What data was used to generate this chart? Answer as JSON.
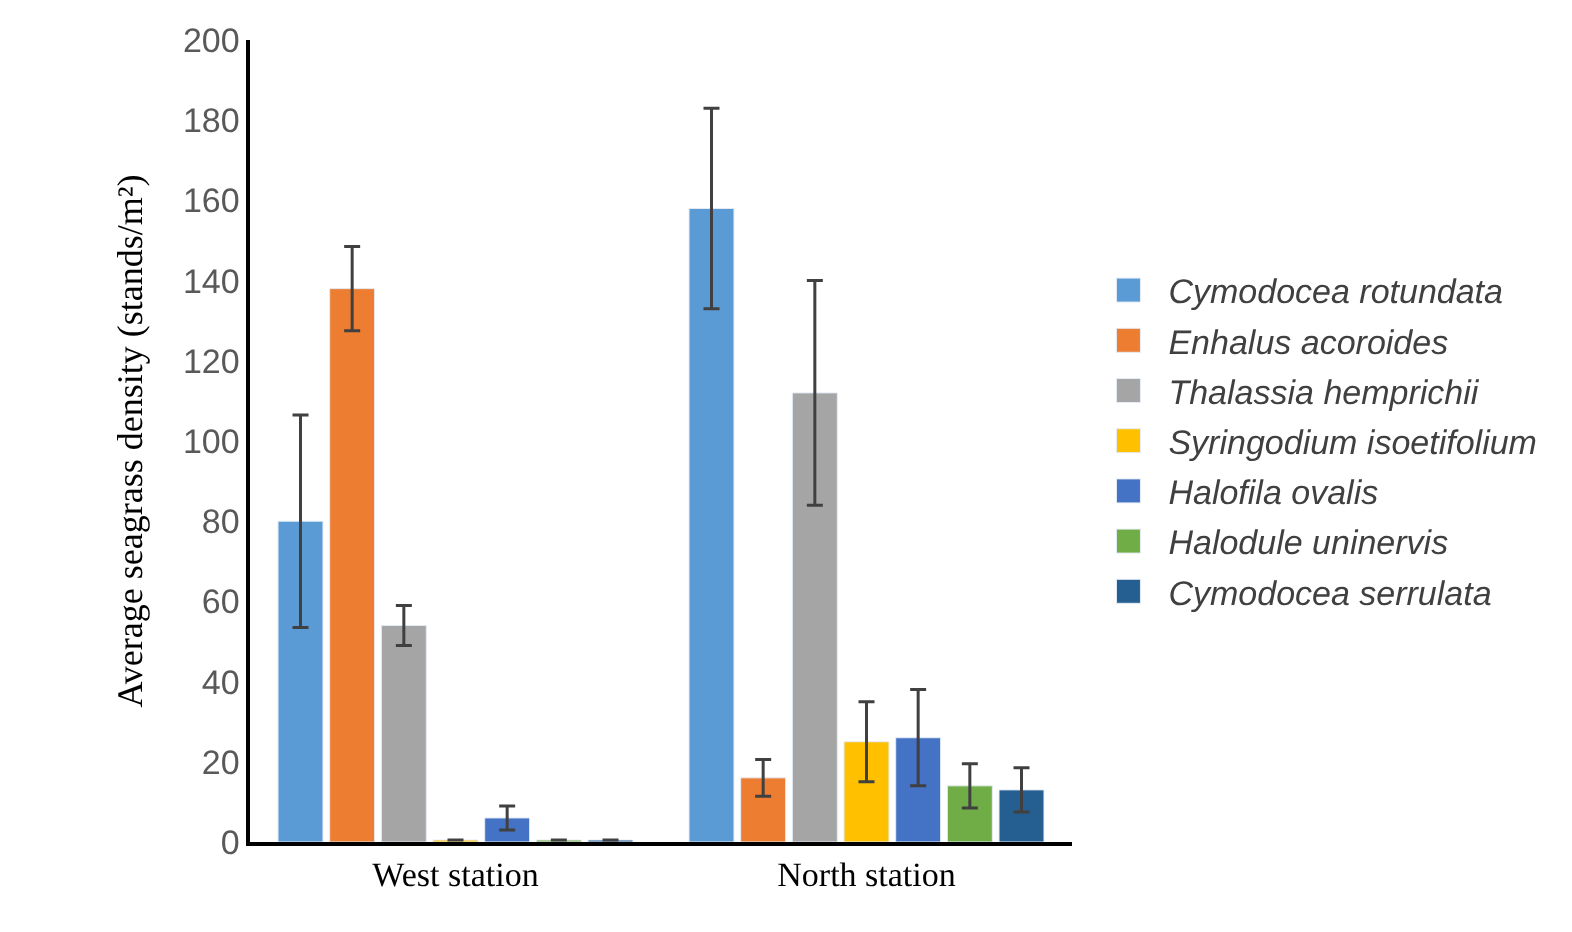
{
  "chart_data": {
    "type": "bar",
    "ylabel": "Average seagrass density (stands/m²)",
    "categories": [
      "West station",
      "North station"
    ],
    "series": [
      {
        "name": "Cymodocea rotundata",
        "color": "#5b9bd5",
        "values": [
          80,
          158
        ],
        "errors": [
          26.5,
          25
        ]
      },
      {
        "name": "Enhalus acoroides",
        "color": "#ed7d31",
        "values": [
          138,
          16
        ],
        "errors": [
          10.5,
          4.6
        ]
      },
      {
        "name": "Thalassia hemprichii",
        "color": "#a5a5a5",
        "values": [
          54,
          112
        ],
        "errors": [
          5,
          28
        ]
      },
      {
        "name": "Syringodium isoetifolium",
        "color": "#ffc000",
        "values": [
          0.5,
          25
        ],
        "errors": [
          null,
          10
        ]
      },
      {
        "name": "Halofila ovalis",
        "color": "#4472c4",
        "values": [
          6,
          26
        ],
        "errors": [
          3,
          12
        ]
      },
      {
        "name": "Halodule uninervis",
        "color": "#70ad47",
        "values": [
          0.5,
          14
        ],
        "errors": [
          null,
          5.5
        ]
      },
      {
        "name": "Cymodocea serrulata",
        "color": "#255e91",
        "values": [
          0.5,
          13
        ],
        "errors": [
          null,
          5.5
        ]
      }
    ],
    "ylim": [
      0,
      200
    ],
    "yticks": [
      0,
      20,
      40,
      60,
      80,
      100,
      120,
      140,
      160,
      180,
      200
    ],
    "legend": "right"
  }
}
